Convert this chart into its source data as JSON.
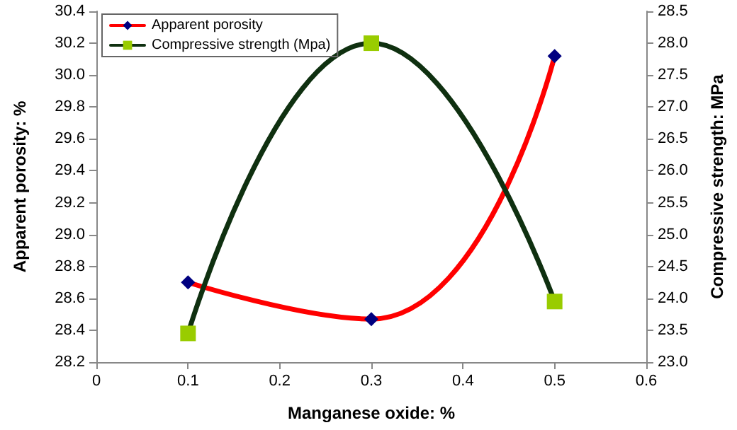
{
  "chart_data": {
    "type": "line",
    "xlabel": "Manganese oxide: %",
    "ylabel": "Apparent porosity: %",
    "y2label": "Compressive strength: MPa",
    "xlim": [
      0,
      0.6
    ],
    "xticks": [
      0,
      0.1,
      0.2,
      0.3,
      0.4,
      0.5,
      0.6
    ],
    "ylim": [
      28.2,
      30.4
    ],
    "yticks": [
      28.2,
      28.4,
      28.6,
      28.8,
      {
        "value": 29,
        "label": "29.0"
      },
      29.2,
      29.4,
      29.6,
      29.8,
      {
        "value": 30,
        "label": "30.0"
      },
      30.2,
      30.4
    ],
    "y2lim": [
      23,
      28.5
    ],
    "y2ticks": [
      {
        "value": 23,
        "label": "23.0"
      },
      23.5,
      {
        "value": 24,
        "label": "24.0"
      },
      24.5,
      {
        "value": 25,
        "label": "25.0"
      },
      25.5,
      {
        "value": 26,
        "label": "26.0"
      },
      26.5,
      {
        "value": 27,
        "label": "27.0"
      },
      27.5,
      {
        "value": 28,
        "label": "28.0"
      },
      28.5
    ],
    "series": [
      {
        "name": "Apparent porosity",
        "color": "#ff0000",
        "colors": [
          "#000080",
          "#000080",
          "#000080"
        ],
        "marker": "diamond",
        "x": [
          0.1,
          0.3,
          0.5
        ],
        "values": [
          28.7,
          28.47,
          30.12
        ]
      },
      {
        "name": "Compressive strength (Mpa)",
        "color": "#0f3010",
        "colors": [
          "#99cc00",
          "#99cc00",
          "#99cc00"
        ],
        "marker": "square",
        "axis": "y2",
        "x": [
          0.1,
          0.3,
          0.5
        ],
        "values": [
          23.45,
          28.0,
          23.95
        ]
      }
    ],
    "grid": false,
    "legend": "top left",
    "line_style": "solid"
  }
}
